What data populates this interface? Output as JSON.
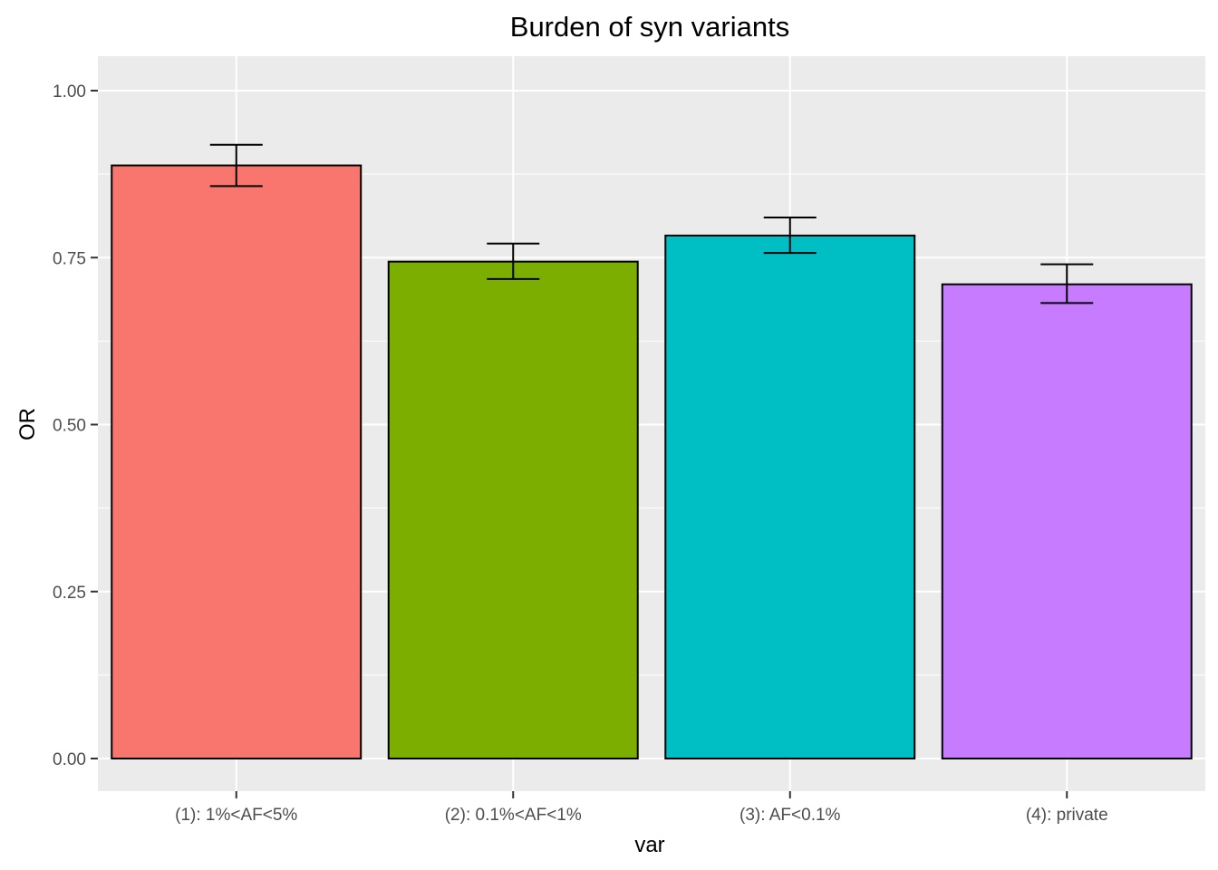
{
  "chart_data": {
    "type": "bar",
    "title": "Burden of syn variants",
    "xlabel": "var",
    "ylabel": "OR",
    "categories": [
      "(1): 1%<AF<5%",
      "(2): 0.1%<AF<1%",
      "(3): AF<0.1%",
      "(4): private"
    ],
    "values": [
      0.888,
      0.744,
      0.783,
      0.71
    ],
    "error_low": [
      0.857,
      0.718,
      0.757,
      0.682
    ],
    "error_high": [
      0.919,
      0.771,
      0.81,
      0.74
    ],
    "colors": [
      "#F8766D",
      "#7CAE00",
      "#00BFC4",
      "#C77CFF"
    ],
    "ylim": [
      -0.05,
      1.05
    ],
    "yticks": [
      0.0,
      0.25,
      0.5,
      0.75,
      1.0
    ],
    "ytick_labels": [
      "0.00",
      "0.25",
      "0.50",
      "0.75",
      "1.00"
    ],
    "grid": true,
    "legend": "none",
    "panel_background": "#EBEBEB",
    "grid_color": "#FFFFFF"
  }
}
